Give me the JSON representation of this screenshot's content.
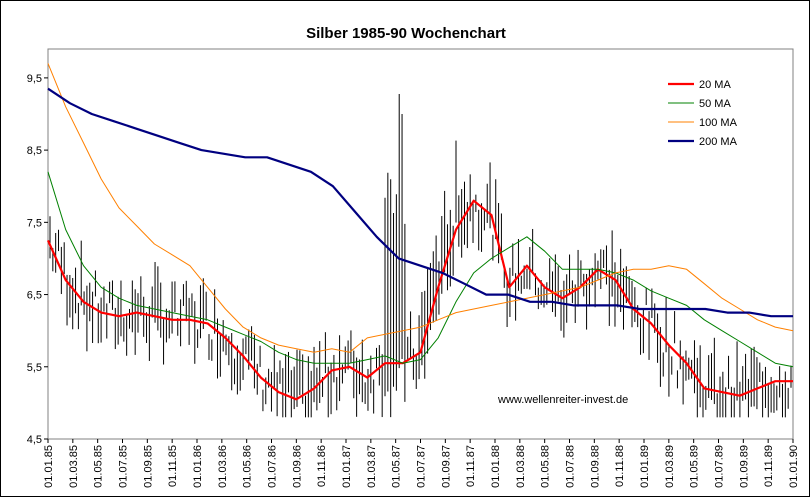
{
  "chart_data": {
    "type": "line",
    "title": "Silber 1985-90 Wochenchart",
    "watermark": "www.wellenreiter-invest.de",
    "ylim": [
      4.5,
      9.9
    ],
    "yticks": [
      {
        "v": 9.5,
        "label": "9,5"
      },
      {
        "v": 8.5,
        "label": "8,5"
      },
      {
        "v": 7.5,
        "label": "7,5"
      },
      {
        "v": 6.5,
        "label": "6,5"
      },
      {
        "v": 5.5,
        "label": "5,5"
      },
      {
        "v": 4.5,
        "label": "4,5"
      }
    ],
    "xlabels": [
      "01.01.85",
      "01.03.85",
      "01.05.85",
      "01.07.85",
      "01.09.85",
      "01.11.85",
      "01.01.86",
      "01.03.86",
      "01.05.86",
      "01.07.86",
      "01.09.86",
      "01.11.86",
      "01.01.87",
      "01.03.87",
      "01.05.87",
      "01.07.87",
      "01.09.87",
      "01.11.87",
      "01.01.88",
      "01.03.88",
      "01.05.88",
      "01.07.88",
      "01.09.88",
      "01.11.88",
      "01.01.89",
      "01.03.89",
      "01.05.89",
      "01.07.89",
      "01.09.89",
      "01.11.89",
      "01.01.90"
    ],
    "grid": false,
    "legend_position": "top-right",
    "price_color": "#000000",
    "series": [
      {
        "name": "20 MA",
        "color": "#ff0000",
        "width": 2.2,
        "values": [
          7.25,
          6.7,
          6.4,
          6.25,
          6.2,
          6.25,
          6.2,
          6.15,
          6.15,
          6.1,
          5.9,
          5.65,
          5.35,
          5.15,
          5.05,
          5.2,
          5.45,
          5.5,
          5.35,
          5.55,
          5.55,
          5.7,
          6.6,
          7.4,
          7.8,
          7.6,
          6.6,
          6.9,
          6.6,
          6.45,
          6.6,
          6.85,
          6.7,
          6.3,
          6.1,
          5.8,
          5.55,
          5.2,
          5.15,
          5.1,
          5.2,
          5.3,
          5.3
        ]
      },
      {
        "name": "50 MA",
        "color": "#008000",
        "width": 1,
        "values": [
          8.2,
          7.4,
          6.9,
          6.6,
          6.45,
          6.35,
          6.3,
          6.25,
          6.2,
          6.15,
          6.05,
          5.95,
          5.85,
          5.7,
          5.6,
          5.55,
          5.55,
          5.55,
          5.6,
          5.65,
          5.55,
          5.6,
          5.9,
          6.4,
          6.8,
          7.0,
          7.15,
          7.3,
          7.1,
          6.85,
          6.85,
          6.85,
          6.8,
          6.7,
          6.55,
          6.45,
          6.35,
          6.15,
          6.0,
          5.85,
          5.7,
          5.55,
          5.5
        ]
      },
      {
        "name": "100 MA",
        "color": "#ff8000",
        "width": 1,
        "values": [
          9.7,
          9.1,
          8.6,
          8.1,
          7.7,
          7.45,
          7.2,
          7.05,
          6.9,
          6.6,
          6.3,
          6.05,
          5.9,
          5.8,
          5.75,
          5.7,
          5.75,
          5.7,
          5.9,
          5.95,
          6.0,
          6.05,
          6.15,
          6.25,
          6.3,
          6.35,
          6.4,
          6.45,
          6.5,
          6.55,
          6.6,
          6.7,
          6.8,
          6.85,
          6.85,
          6.9,
          6.85,
          6.65,
          6.45,
          6.3,
          6.15,
          6.05,
          6.0
        ]
      },
      {
        "name": "200 MA",
        "color": "#000080",
        "width": 2.2,
        "values": [
          9.35,
          9.15,
          9.0,
          8.9,
          8.8,
          8.7,
          8.6,
          8.5,
          8.45,
          8.4,
          8.4,
          8.3,
          8.2,
          8.0,
          7.65,
          7.3,
          7.0,
          6.9,
          6.8,
          6.65,
          6.5,
          6.5,
          6.4,
          6.4,
          6.35,
          6.35,
          6.35,
          6.3,
          6.3,
          6.3,
          6.3,
          6.25,
          6.25,
          6.2,
          6.2
        ]
      }
    ]
  }
}
